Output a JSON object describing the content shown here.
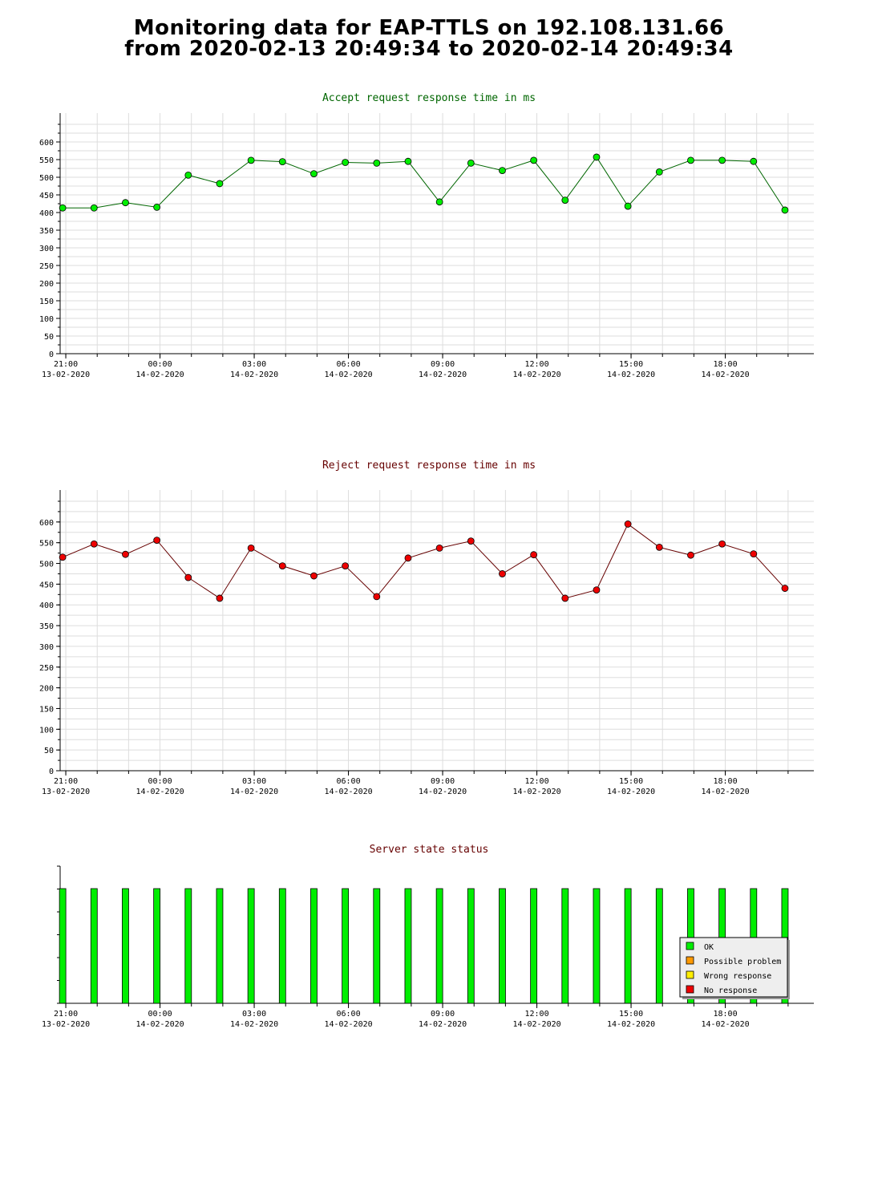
{
  "page": {
    "title_line1": "Monitoring data for EAP-TTLS on 192.108.131.66",
    "title_line2": "from 2020-02-13 20:49:34 to 2020-02-14 20:49:34"
  },
  "x_axis": {
    "time_labels": [
      "21:00",
      "00:00",
      "03:00",
      "06:00",
      "09:00",
      "12:00",
      "15:00",
      "18:00"
    ],
    "date_labels": [
      "13-02-2020",
      "14-02-2020",
      "14-02-2020",
      "14-02-2020",
      "14-02-2020",
      "14-02-2020",
      "14-02-2020",
      "14-02-2020"
    ]
  },
  "chart_data": [
    {
      "type": "line",
      "title": "Accept request response time in ms",
      "title_color": "#006600",
      "marker_color": "#00ee00",
      "line_color": "#006600",
      "ylim": [
        0,
        650
      ],
      "yticks": [
        "0",
        "50",
        "100",
        "150",
        "200",
        "250",
        "300",
        "350",
        "400",
        "450",
        "500",
        "550",
        "600"
      ],
      "x_hours": [
        20.9,
        21.9,
        22.9,
        23.9,
        24.9,
        25.9,
        26.9,
        27.9,
        28.9,
        29.9,
        30.9,
        31.9,
        32.9,
        33.9,
        34.9,
        35.9,
        36.9,
        37.9,
        38.9,
        39.9,
        40.9,
        41.9,
        42.9,
        43.9
      ],
      "values": [
        413,
        413,
        428,
        415,
        506,
        482,
        548,
        544,
        510,
        542,
        540,
        545,
        430,
        540,
        519,
        548,
        435,
        557,
        418,
        515,
        548,
        548,
        545,
        407
      ]
    },
    {
      "type": "line",
      "title": "Reject request response time in ms",
      "title_color": "#660000",
      "marker_color": "#ee0000",
      "line_color": "#660000",
      "ylim": [
        0,
        650
      ],
      "yticks": [
        "0",
        "50",
        "100",
        "150",
        "200",
        "250",
        "300",
        "350",
        "400",
        "450",
        "500",
        "550",
        "600"
      ],
      "x_hours": [
        20.9,
        21.9,
        22.9,
        23.9,
        24.9,
        25.9,
        26.9,
        27.9,
        28.9,
        29.9,
        30.9,
        31.9,
        32.9,
        33.9,
        34.9,
        35.9,
        36.9,
        37.9,
        38.9,
        39.9,
        40.9,
        41.9,
        42.9,
        43.9
      ],
      "values": [
        515,
        547,
        522,
        556,
        466,
        416,
        537,
        494,
        470,
        494,
        420,
        513,
        537,
        554,
        475,
        521,
        416,
        436,
        595,
        539,
        520,
        547,
        523,
        440
      ]
    },
    {
      "type": "bar",
      "title": "Server state status",
      "title_color": "#660000",
      "x_hours": [
        20.9,
        21.9,
        22.9,
        23.9,
        24.9,
        25.9,
        26.9,
        27.9,
        28.9,
        29.9,
        30.9,
        31.9,
        32.9,
        33.9,
        34.9,
        35.9,
        36.9,
        37.9,
        38.9,
        39.9,
        40.9,
        41.9,
        42.9,
        43.9
      ],
      "states": [
        "OK",
        "OK",
        "OK",
        "OK",
        "OK",
        "OK",
        "OK",
        "OK",
        "OK",
        "OK",
        "OK",
        "OK",
        "OK",
        "OK",
        "OK",
        "OK",
        "OK",
        "OK",
        "OK",
        "OK",
        "OK",
        "OK",
        "OK",
        "OK"
      ],
      "legend_placement": "bottom-right",
      "legend": [
        {
          "label": "OK",
          "color": "#00ee00"
        },
        {
          "label": "Possible problem",
          "color": "#ff9900"
        },
        {
          "label": "Wrong response",
          "color": "#ffee00"
        },
        {
          "label": "No response",
          "color": "#ee0000"
        }
      ]
    }
  ]
}
